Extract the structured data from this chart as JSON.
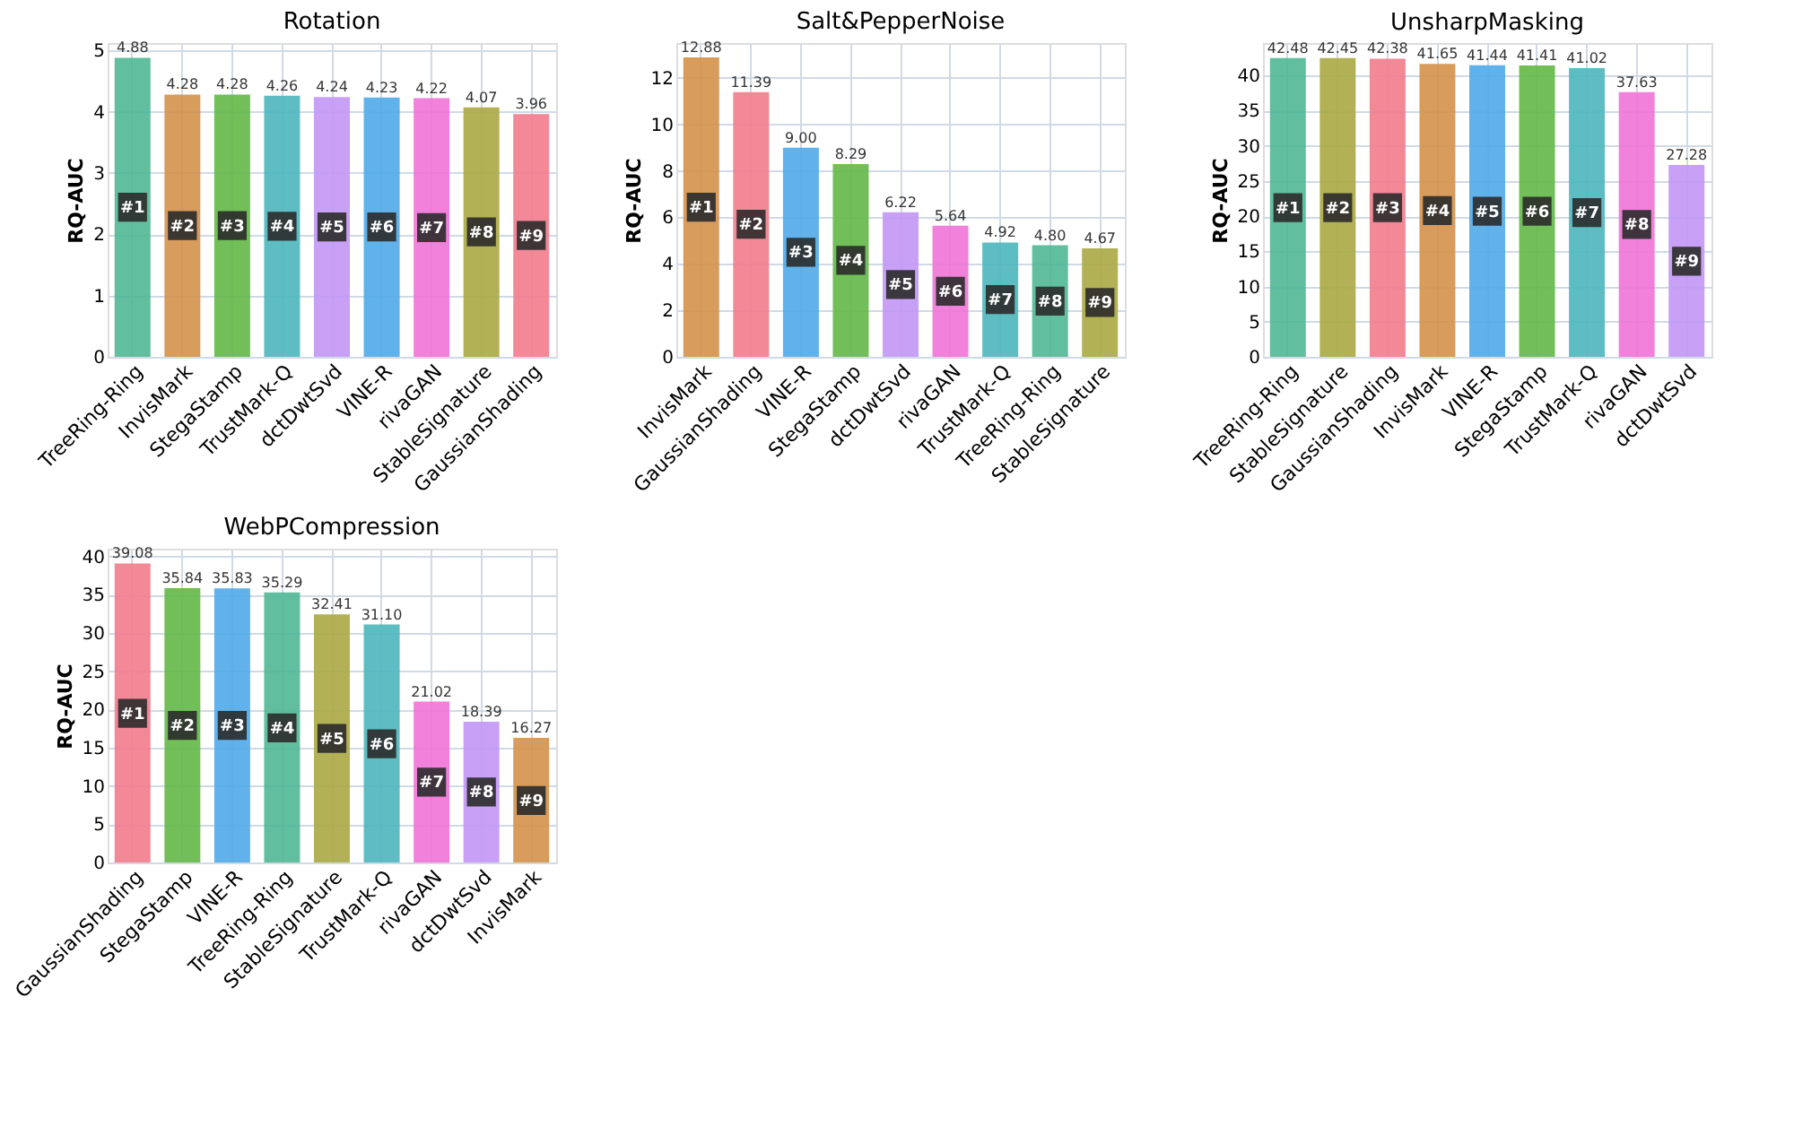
{
  "chart_data": [
    {
      "type": "bar",
      "title": "Rotation",
      "ylabel": "RQ-AUC",
      "categories": [
        "TreeRing-Ring",
        "InvisMark",
        "StegaStamp",
        "TrustMark-Q",
        "dctDwtSvd",
        "VINE-R",
        "rivaGAN",
        "StableSignature",
        "GaussianShading"
      ],
      "values": [
        4.88,
        4.28,
        4.28,
        4.26,
        4.24,
        4.23,
        4.22,
        4.07,
        3.96
      ],
      "value_labels": [
        "4.88",
        "4.28",
        "4.28",
        "4.26",
        "4.24",
        "4.23",
        "4.22",
        "4.07",
        "3.96"
      ],
      "colors": [
        "#50b795",
        "#d4914a",
        "#63b847",
        "#4db6bc",
        "#c297f5",
        "#50aae8",
        "#ef73d6",
        "#aaa843",
        "#f27b8c"
      ],
      "ylim": [
        0,
        5.12
      ],
      "yticks": [
        0,
        1,
        2,
        3,
        4,
        5
      ],
      "grid": true,
      "annotations": [
        {
          "text": "#1",
          "x": "TreeRing-Ring",
          "y": 2.44
        },
        {
          "text": "#2",
          "x": "InvisMark",
          "y": 2.14
        },
        {
          "text": "#3",
          "x": "StegaStamp",
          "y": 2.14
        },
        {
          "text": "#4",
          "x": "TrustMark-Q",
          "y": 2.13
        },
        {
          "text": "#5",
          "x": "dctDwtSvd",
          "y": 2.12
        },
        {
          "text": "#6",
          "x": "VINE-R",
          "y": 2.12
        },
        {
          "text": "#7",
          "x": "rivaGAN",
          "y": 2.11
        },
        {
          "text": "#8",
          "x": "StableSignature",
          "y": 2.04
        },
        {
          "text": "#9",
          "x": "GaussianShading",
          "y": 1.98
        }
      ]
    },
    {
      "type": "bar",
      "title": "Salt&PepperNoise",
      "ylabel": "RQ-AUC",
      "categories": [
        "InvisMark",
        "GaussianShading",
        "VINE-R",
        "StegaStamp",
        "dctDwtSvd",
        "rivaGAN",
        "TrustMark-Q",
        "TreeRing-Ring",
        "StableSignature"
      ],
      "values": [
        12.88,
        11.39,
        9.0,
        8.29,
        6.22,
        5.64,
        4.92,
        4.8,
        4.67
      ],
      "value_labels": [
        "12.88",
        "11.39",
        "9.00",
        "8.29",
        "6.22",
        "5.64",
        "4.92",
        "4.80",
        "4.67"
      ],
      "colors": [
        "#d4914a",
        "#f27b8c",
        "#50aae8",
        "#63b847",
        "#c297f5",
        "#ef73d6",
        "#4db6bc",
        "#50b795",
        "#aaa843"
      ],
      "ylim": [
        0,
        13.5
      ],
      "yticks": [
        0,
        2,
        4,
        6,
        8,
        10,
        12
      ],
      "grid": true,
      "annotations": [
        {
          "text": "#1",
          "x": "InvisMark",
          "y": 6.44
        },
        {
          "text": "#2",
          "x": "GaussianShading",
          "y": 5.7
        },
        {
          "text": "#3",
          "x": "VINE-R",
          "y": 4.5
        },
        {
          "text": "#4",
          "x": "StegaStamp",
          "y": 4.15
        },
        {
          "text": "#5",
          "x": "dctDwtSvd",
          "y": 3.11
        },
        {
          "text": "#6",
          "x": "rivaGAN",
          "y": 2.82
        },
        {
          "text": "#7",
          "x": "TrustMark-Q",
          "y": 2.46
        },
        {
          "text": "#8",
          "x": "TreeRing-Ring",
          "y": 2.4
        },
        {
          "text": "#9",
          "x": "StableSignature",
          "y": 2.34
        }
      ]
    },
    {
      "type": "bar",
      "title": "UnsharpMasking",
      "ylabel": "RQ-AUC",
      "categories": [
        "TreeRing-Ring",
        "StableSignature",
        "GaussianShading",
        "InvisMark",
        "VINE-R",
        "StegaStamp",
        "TrustMark-Q",
        "rivaGAN",
        "dctDwtSvd"
      ],
      "values": [
        42.48,
        42.45,
        42.38,
        41.65,
        41.44,
        41.41,
        41.02,
        37.63,
        27.28
      ],
      "value_labels": [
        "42.48",
        "42.45",
        "42.38",
        "41.65",
        "41.44",
        "41.41",
        "41.02",
        "37.63",
        "27.28"
      ],
      "colors": [
        "#50b795",
        "#aaa843",
        "#f27b8c",
        "#d4914a",
        "#50aae8",
        "#63b847",
        "#4db6bc",
        "#ef73d6",
        "#c297f5"
      ],
      "ylim": [
        0,
        44.6
      ],
      "yticks": [
        0,
        5,
        10,
        15,
        20,
        25,
        30,
        35,
        40
      ],
      "grid": true,
      "annotations": [
        {
          "text": "#1",
          "x": "TreeRing-Ring",
          "y": 21.2
        },
        {
          "text": "#2",
          "x": "StableSignature",
          "y": 21.2
        },
        {
          "text": "#3",
          "x": "GaussianShading",
          "y": 21.2
        },
        {
          "text": "#4",
          "x": "InvisMark",
          "y": 20.8
        },
        {
          "text": "#5",
          "x": "VINE-R",
          "y": 20.7
        },
        {
          "text": "#6",
          "x": "StegaStamp",
          "y": 20.7
        },
        {
          "text": "#7",
          "x": "TrustMark-Q",
          "y": 20.5
        },
        {
          "text": "#8",
          "x": "rivaGAN",
          "y": 18.8
        },
        {
          "text": "#9",
          "x": "dctDwtSvd",
          "y": 13.6
        }
      ]
    },
    {
      "type": "bar",
      "title": "WebPCompression",
      "ylabel": "RQ-AUC",
      "categories": [
        "GaussianShading",
        "StegaStamp",
        "VINE-R",
        "TreeRing-Ring",
        "StableSignature",
        "TrustMark-Q",
        "rivaGAN",
        "dctDwtSvd",
        "InvisMark"
      ],
      "values": [
        39.08,
        35.84,
        35.83,
        35.29,
        32.41,
        31.1,
        21.02,
        18.39,
        16.27
      ],
      "value_labels": [
        "39.08",
        "35.84",
        "35.83",
        "35.29",
        "32.41",
        "31.10",
        "21.02",
        "18.39",
        "16.27"
      ],
      "colors": [
        "#f27b8c",
        "#63b847",
        "#50aae8",
        "#50b795",
        "#aaa843",
        "#4db6bc",
        "#ef73d6",
        "#c297f5",
        "#d4914a"
      ],
      "ylim": [
        0,
        41
      ],
      "yticks": [
        0,
        5,
        10,
        15,
        20,
        25,
        30,
        35,
        40
      ],
      "grid": true,
      "annotations": [
        {
          "text": "#1",
          "x": "GaussianShading",
          "y": 19.5
        },
        {
          "text": "#2",
          "x": "StegaStamp",
          "y": 17.9
        },
        {
          "text": "#3",
          "x": "VINE-R",
          "y": 17.9
        },
        {
          "text": "#4",
          "x": "TreeRing-Ring",
          "y": 17.6
        },
        {
          "text": "#5",
          "x": "StableSignature",
          "y": 16.2
        },
        {
          "text": "#6",
          "x": "TrustMark-Q",
          "y": 15.5
        },
        {
          "text": "#7",
          "x": "rivaGAN",
          "y": 10.5
        },
        {
          "text": "#8",
          "x": "dctDwtSvd",
          "y": 9.2
        },
        {
          "text": "#9",
          "x": "InvisMark",
          "y": 8.1
        }
      ]
    }
  ]
}
